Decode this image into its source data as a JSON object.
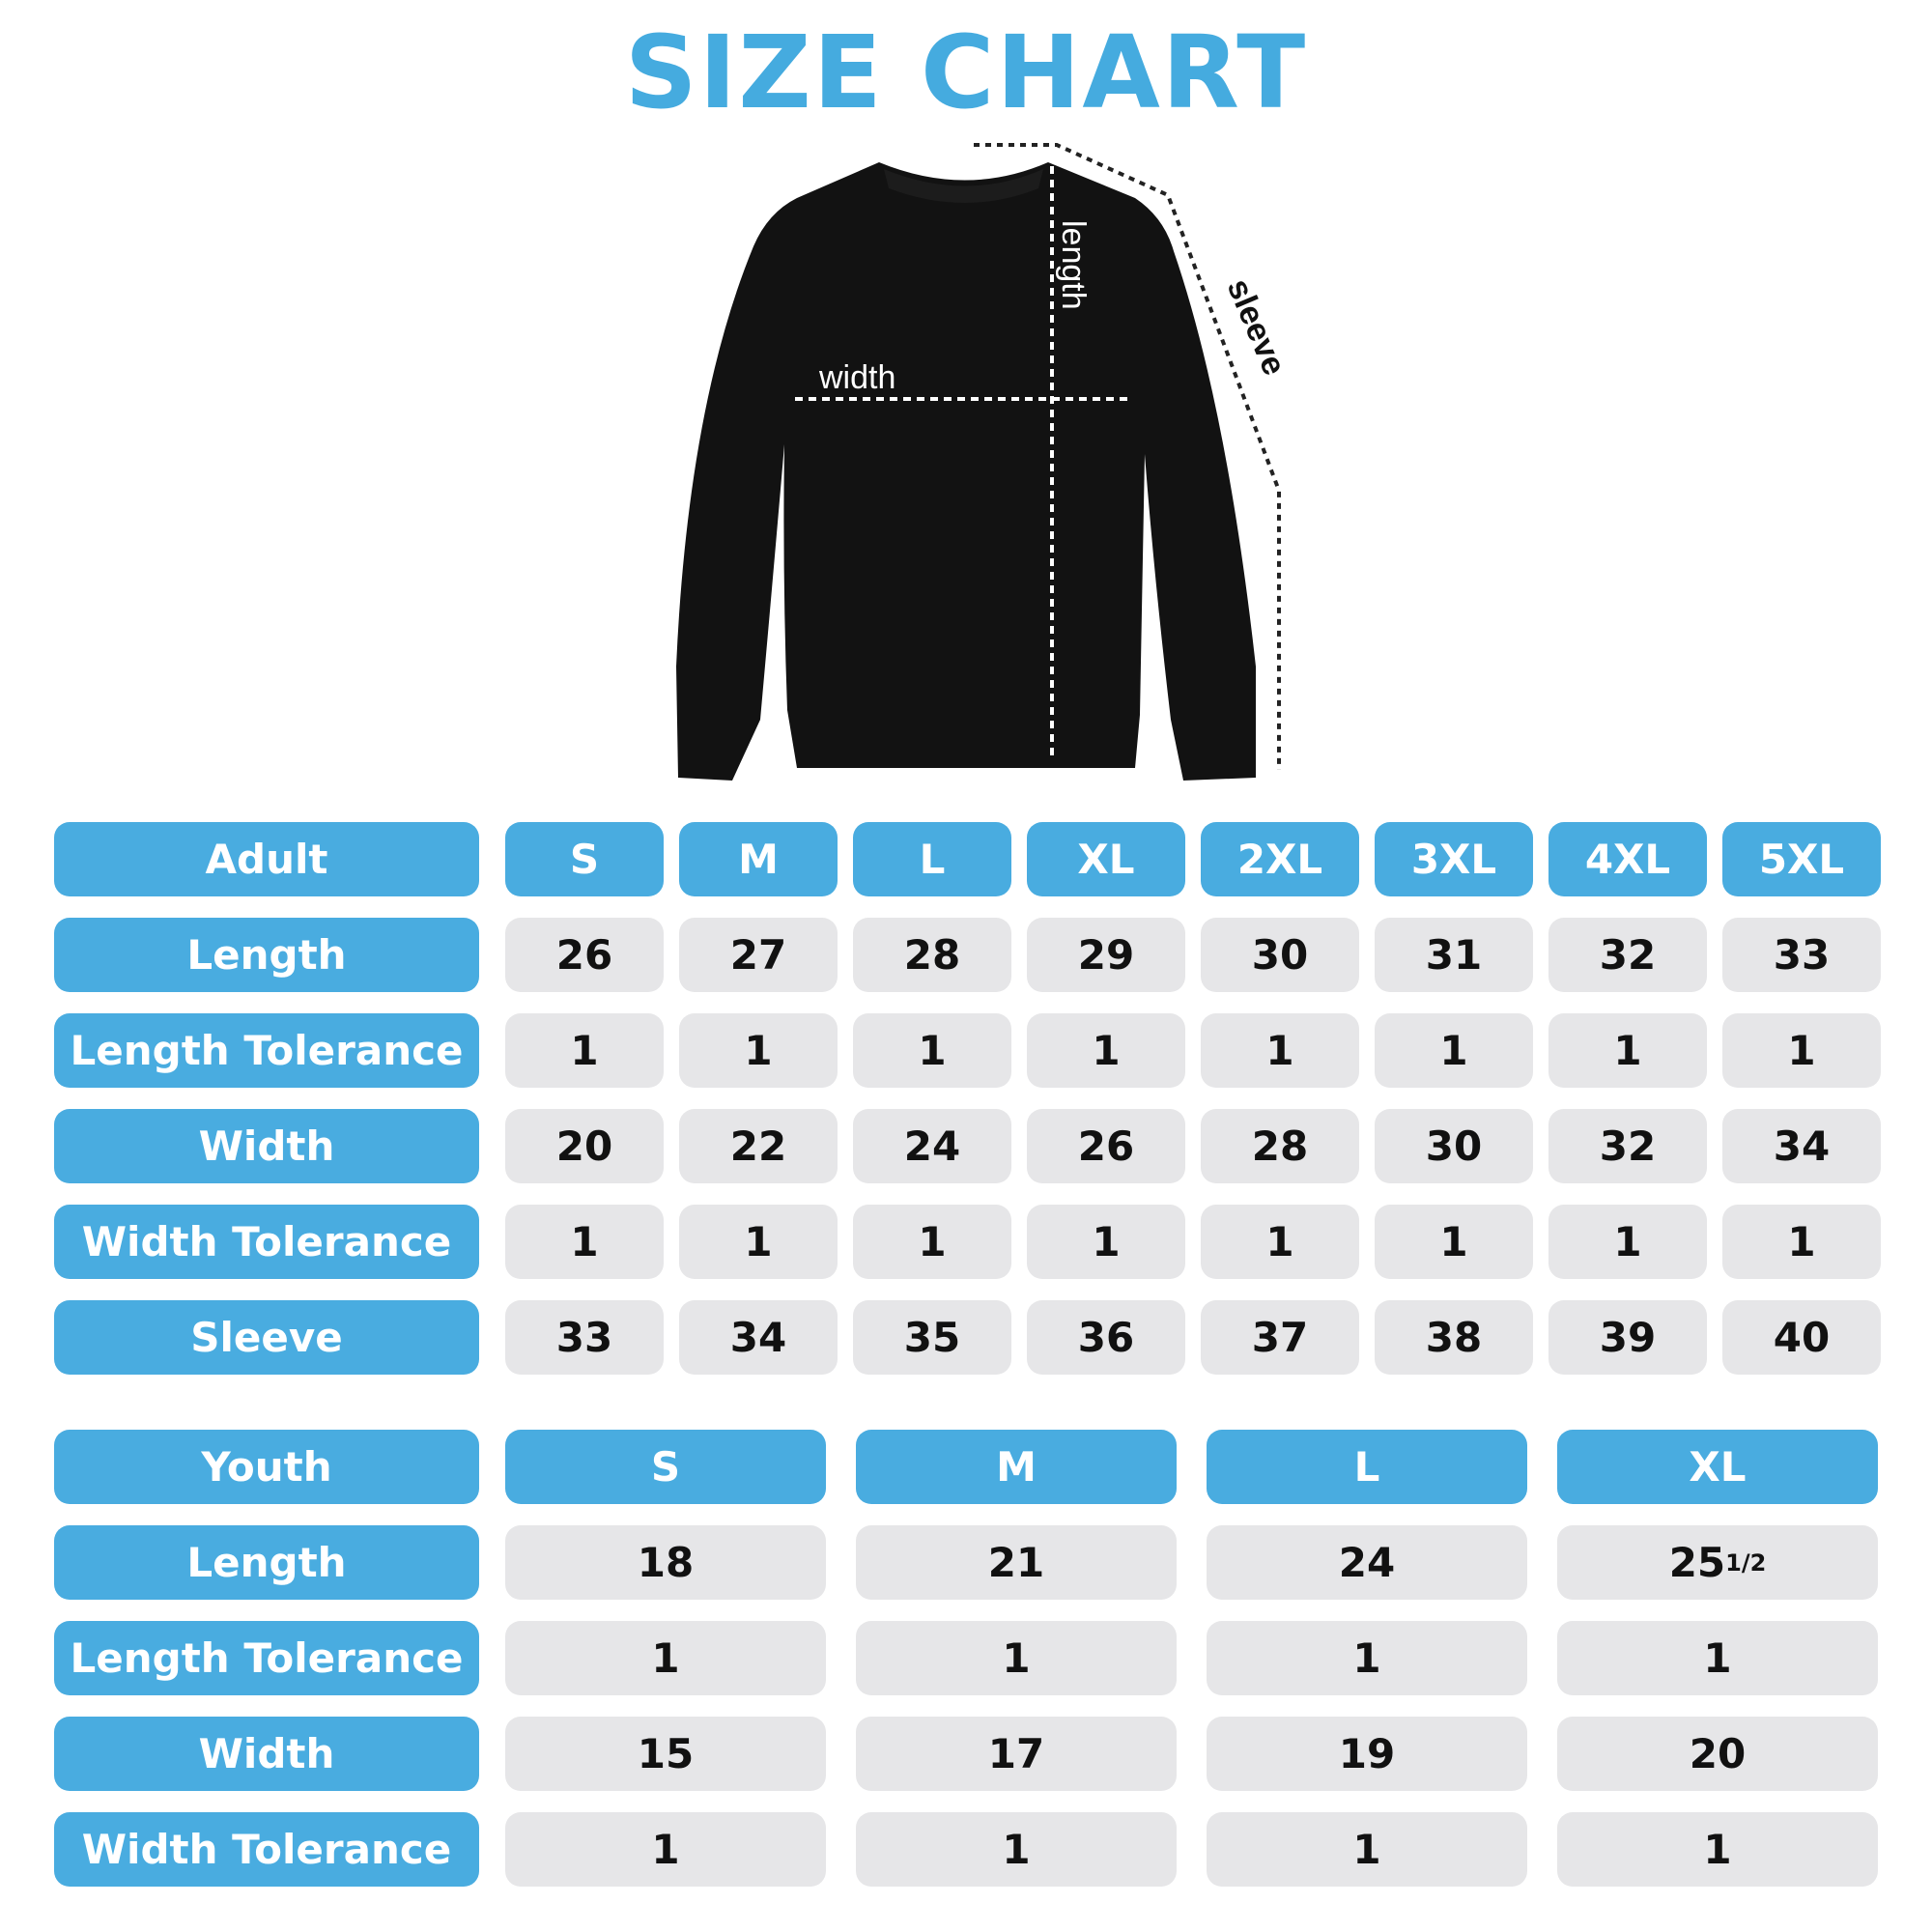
{
  "title": "SIZE CHART",
  "diagram_labels": {
    "width": "width",
    "length": "length",
    "sleeve": "sleeve"
  },
  "colors": {
    "accent": "#49ACE0",
    "cell": "#E6E6E8",
    "garment": "#111111"
  },
  "adult": {
    "header": "Adult",
    "sizes": [
      "S",
      "M",
      "L",
      "XL",
      "2XL",
      "3XL",
      "4XL",
      "5XL"
    ],
    "rows": [
      {
        "label": "Length",
        "values": [
          "26",
          "27",
          "28",
          "29",
          "30",
          "31",
          "32",
          "33"
        ]
      },
      {
        "label": "Length Tolerance",
        "values": [
          "1",
          "1",
          "1",
          "1",
          "1",
          "1",
          "1",
          "1"
        ]
      },
      {
        "label": "Width",
        "values": [
          "20",
          "22",
          "24",
          "26",
          "28",
          "30",
          "32",
          "34"
        ]
      },
      {
        "label": "Width Tolerance",
        "values": [
          "1",
          "1",
          "1",
          "1",
          "1",
          "1",
          "1",
          "1"
        ]
      },
      {
        "label": "Sleeve",
        "values": [
          "33",
          "34",
          "35",
          "36",
          "37",
          "38",
          "39",
          "40"
        ]
      }
    ]
  },
  "youth": {
    "header": "Youth",
    "sizes": [
      "S",
      "M",
      "L",
      "XL"
    ],
    "rows": [
      {
        "label": "Length",
        "values": [
          "18",
          "21",
          "24",
          "25 1/2"
        ]
      },
      {
        "label": "Length Tolerance",
        "values": [
          "1",
          "1",
          "1",
          "1"
        ]
      },
      {
        "label": "Width",
        "values": [
          "15",
          "17",
          "19",
          "20"
        ]
      },
      {
        "label": "Width Tolerance",
        "values": [
          "1",
          "1",
          "1",
          "1"
        ]
      }
    ]
  }
}
